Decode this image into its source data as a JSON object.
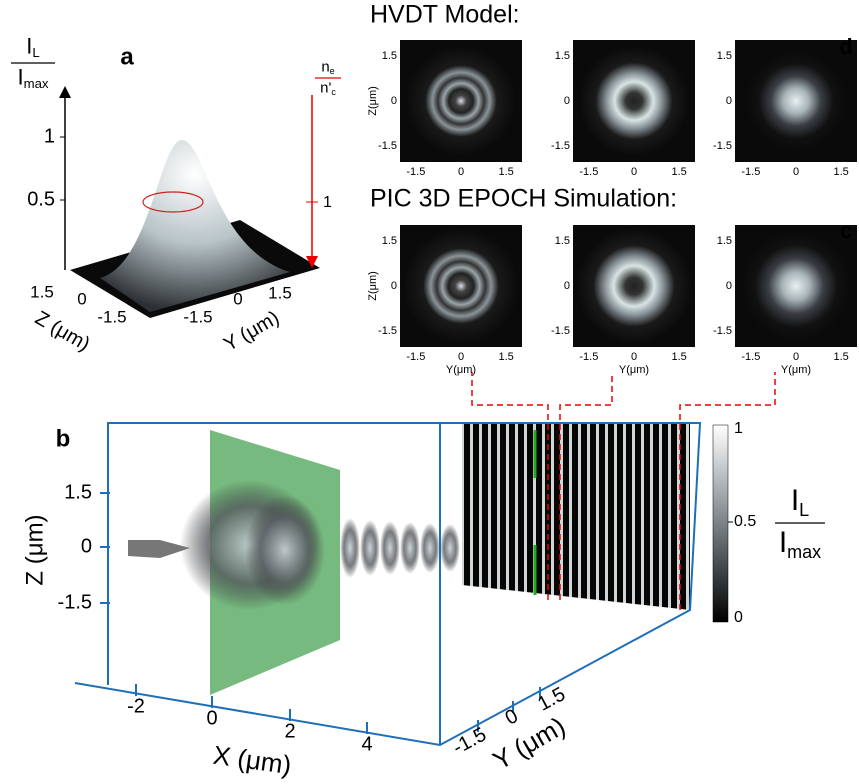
{
  "panel_a": {
    "label": "a",
    "intensity_axis": {
      "num": "I",
      "num_sub": "L",
      "den": "I",
      "den_sub": "max"
    },
    "intensity_ticks": [
      "1",
      "0.5"
    ],
    "density_axis": {
      "num": "n",
      "num_sub": "e",
      "den": "n'",
      "den_sub": "c"
    },
    "density_ticks": [
      "1"
    ],
    "z_ticks": [
      "1.5",
      "0",
      "-1.5"
    ],
    "z_label": "Z (μm)",
    "y_ticks": [
      "-1.5",
      "0",
      "1.5"
    ],
    "y_label": "Y (μm)"
  },
  "panel_d": {
    "label": "d",
    "title": "HVDT Model:",
    "y_label": "Z(μm)",
    "y_ticks": [
      "1.5",
      "0",
      "-1.5"
    ],
    "x_ticks": [
      "-1.5",
      "0",
      "1.5"
    ]
  },
  "panel_c": {
    "label": "c",
    "title": "PIC 3D EPOCH Simulation:",
    "y_label": "Z(μm)",
    "x_label": "Y(μm)",
    "y_ticks": [
      "1.5",
      "0",
      "-1.5"
    ],
    "x_ticks": [
      "-1.5",
      "0",
      "1.5"
    ]
  },
  "panel_b": {
    "label": "b",
    "z_ticks": [
      "1.5",
      "0",
      "-1.5"
    ],
    "z_label": "Z (μm)",
    "x_ticks": [
      "-2",
      "0",
      "2",
      "4"
    ],
    "x_label": "X (μm)",
    "y_ticks": [
      "-1.5",
      "0",
      "1.5"
    ],
    "y_label": "Y (μm)",
    "colorbar_ticks": [
      "1",
      "0.5",
      "0"
    ],
    "colorbar_label": {
      "num": "I",
      "num_sub": "L",
      "den": "I",
      "den_sub": "max"
    }
  }
}
